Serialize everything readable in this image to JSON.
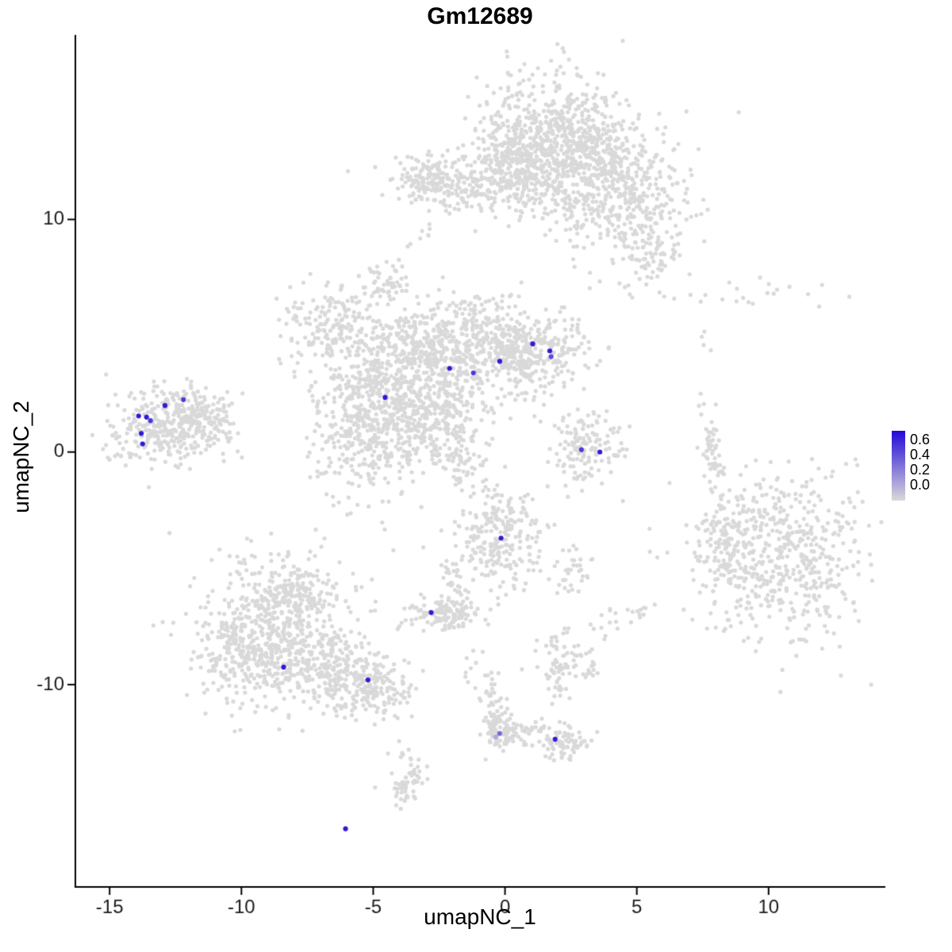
{
  "title": "Gm12689",
  "axes": {
    "x_label": "umapNC_1",
    "y_label": "umapNC_2"
  },
  "legend": {
    "labels": [
      "0.6",
      "0.4",
      "0.2",
      "0.0"
    ]
  },
  "chart_data": {
    "type": "scatter",
    "title": "Gm12689",
    "xlabel": "umapNC_1",
    "ylabel": "umapNC_2",
    "xlim": [
      -16.3,
      14.4
    ],
    "ylim": [
      -18.7,
      17.9
    ],
    "xticks": [
      -15,
      -10,
      -5,
      0,
      5,
      10
    ],
    "yticks": [
      10,
      0,
      -10
    ],
    "grid": false,
    "legend_position": "right",
    "legend_labels": [
      "0.6",
      "0.4",
      "0.2",
      "0.0"
    ],
    "color_low": "#D9D9D9",
    "color_high": "#2209D8",
    "color_max_value": 0.65,
    "background_clusters": [
      {
        "cx": 1.6,
        "cy": 13.7,
        "sx": 1.3,
        "sy": 1.5,
        "n": 420
      },
      {
        "cx": 2.1,
        "cy": 12.2,
        "sx": 1.5,
        "sy": 1.1,
        "n": 300
      },
      {
        "cx": 3.4,
        "cy": 13.4,
        "sx": 0.9,
        "sy": 0.8,
        "n": 150
      },
      {
        "cx": 4.2,
        "cy": 11.2,
        "sx": 1.1,
        "sy": 1.5,
        "n": 280,
        "rot": -30
      },
      {
        "cx": 5.3,
        "cy": 9.4,
        "sx": 0.8,
        "sy": 1.1,
        "n": 140
      },
      {
        "cx": 0.3,
        "cy": 12.6,
        "sx": 0.8,
        "sy": 0.8,
        "n": 150
      },
      {
        "cx": -1.7,
        "cy": 11.5,
        "sx": 1.3,
        "sy": 0.55,
        "n": 200
      },
      {
        "cx": -3.0,
        "cy": 11.8,
        "sx": 0.5,
        "sy": 0.45,
        "n": 70
      },
      {
        "cx": -3.1,
        "cy": 9.4,
        "sx": 0.4,
        "sy": 0.3,
        "n": 8
      },
      {
        "cx": 5.8,
        "cy": 8.3,
        "sx": 0.5,
        "sy": 0.5,
        "n": 12
      },
      {
        "cx": -4.4,
        "cy": 2.7,
        "sx": 1.4,
        "sy": 1.4,
        "n": 500
      },
      {
        "cx": -3.2,
        "cy": 4.2,
        "sx": 0.8,
        "sy": 0.8,
        "n": 150
      },
      {
        "cx": -1.2,
        "cy": 5.0,
        "sx": 1.4,
        "sy": 0.95,
        "n": 300
      },
      {
        "cx": 0.1,
        "cy": 4.1,
        "sx": 0.7,
        "sy": 0.6,
        "n": 120
      },
      {
        "cx": 1.2,
        "cy": 4.3,
        "sx": 1.1,
        "sy": 0.8,
        "n": 220
      },
      {
        "cx": -6.4,
        "cy": 5.5,
        "sx": 0.95,
        "sy": 0.9,
        "n": 180
      },
      {
        "cx": -5.3,
        "cy": 0.4,
        "sx": 1.0,
        "sy": 1.3,
        "n": 250
      },
      {
        "cx": -2.5,
        "cy": 1.8,
        "sx": 1.0,
        "sy": 0.9,
        "n": 200,
        "rot": 40
      },
      {
        "cx": -1.9,
        "cy": 0.0,
        "sx": 0.55,
        "sy": 0.9,
        "n": 100,
        "rot": 35
      },
      {
        "cx": -4.5,
        "cy": 7.3,
        "sx": 0.4,
        "sy": 0.45,
        "n": 45
      },
      {
        "cx": -12.8,
        "cy": 1.2,
        "sx": 1.1,
        "sy": 0.8,
        "n": 350,
        "rot": 15
      },
      {
        "cx": -11.4,
        "cy": 1.4,
        "sx": 0.6,
        "sy": 0.45,
        "n": 90
      },
      {
        "cx": 3.1,
        "cy": 0.1,
        "sx": 0.75,
        "sy": 0.8,
        "n": 140
      },
      {
        "cx": 7.85,
        "cy": 0.1,
        "sx": 0.18,
        "sy": 1.0,
        "n": 55,
        "rot": 10
      },
      {
        "cx": 10.4,
        "cy": -4.4,
        "sx": 1.7,
        "sy": 1.8,
        "n": 550
      },
      {
        "cx": 8.5,
        "cy": -4.2,
        "sx": 0.6,
        "sy": 1.1,
        "n": 90
      },
      {
        "cx": -0.2,
        "cy": -3.8,
        "sx": 0.85,
        "sy": 1.05,
        "n": 230
      },
      {
        "cx": -2.3,
        "cy": -6.9,
        "sx": 0.7,
        "sy": 0.4,
        "n": 110
      },
      {
        "cx": -1.6,
        "cy": -6.7,
        "sx": 0.3,
        "sy": 0.3,
        "n": 30
      },
      {
        "cx": -2.0,
        "cy": -5.6,
        "sx": 0.2,
        "sy": 0.6,
        "n": 22
      },
      {
        "cx": -8.7,
        "cy": -7.6,
        "sx": 1.4,
        "sy": 1.5,
        "n": 450
      },
      {
        "cx": -9.9,
        "cy": -8.6,
        "sx": 0.8,
        "sy": 1.0,
        "n": 180
      },
      {
        "cx": -8.0,
        "cy": -6.0,
        "sx": 0.8,
        "sy": 0.6,
        "n": 120
      },
      {
        "cx": -6.6,
        "cy": -9.4,
        "sx": 1.3,
        "sy": 0.9,
        "n": 280,
        "rot": -20
      },
      {
        "cx": -4.9,
        "cy": -10.1,
        "sx": 0.7,
        "sy": 0.5,
        "n": 120,
        "rot": -20
      },
      {
        "cx": 2.3,
        "cy": -9.1,
        "sx": 0.55,
        "sy": 0.6,
        "n": 90
      },
      {
        "cx": 2.6,
        "cy": -5.2,
        "sx": 0.35,
        "sy": 0.5,
        "n": 30
      },
      {
        "cx": 3.8,
        "cy": -7.4,
        "sx": 0.3,
        "sy": 0.4,
        "n": 12
      },
      {
        "cx": 5.0,
        "cy": -7.0,
        "sx": 0.25,
        "sy": 0.35,
        "n": 10
      },
      {
        "cx": -0.35,
        "cy": -11.3,
        "sx": 0.3,
        "sy": 0.8,
        "n": 50
      },
      {
        "cx": -0.2,
        "cy": -12.15,
        "sx": 0.35,
        "sy": 0.35,
        "n": 60
      },
      {
        "cx": 0.9,
        "cy": -11.9,
        "sx": 0.5,
        "sy": 0.35,
        "n": 30
      },
      {
        "cx": 2.1,
        "cy": -12.5,
        "sx": 0.55,
        "sy": 0.4,
        "n": 80
      },
      {
        "cx": -0.7,
        "cy": -9.7,
        "sx": 0.5,
        "sy": 0.6,
        "n": 12
      },
      {
        "cx": -0.4,
        "cy": -2.5,
        "sx": 0.4,
        "sy": 0.4,
        "n": 14
      },
      {
        "cx": -3.6,
        "cy": -13.9,
        "sx": 0.3,
        "sy": 0.5,
        "n": 40
      },
      {
        "cx": -3.8,
        "cy": -14.8,
        "sx": 0.25,
        "sy": 0.3,
        "n": 20
      },
      {
        "cx": 8.6,
        "cy": 6.8,
        "sx": 1.7,
        "sy": 0.3,
        "n": 22
      },
      {
        "cx": 7.5,
        "cy": 4.7,
        "sx": 0.3,
        "sy": 0.3,
        "n": 4
      }
    ],
    "highlighted_points": [
      {
        "x": -13.9,
        "y": 1.55,
        "v": 0.6
      },
      {
        "x": -13.6,
        "y": 1.5,
        "v": 0.6
      },
      {
        "x": -13.45,
        "y": 1.35,
        "v": 0.5
      },
      {
        "x": -13.8,
        "y": 0.8,
        "v": 0.6
      },
      {
        "x": -13.75,
        "y": 0.35,
        "v": 0.6
      },
      {
        "x": -12.9,
        "y": 2.0,
        "v": 0.6
      },
      {
        "x": -12.2,
        "y": 2.25,
        "v": 0.5
      },
      {
        "x": -4.55,
        "y": 2.35,
        "v": 0.6
      },
      {
        "x": -2.1,
        "y": 3.6,
        "v": 0.6
      },
      {
        "x": -1.2,
        "y": 3.4,
        "v": 0.5
      },
      {
        "x": -0.2,
        "y": 3.9,
        "v": 0.6
      },
      {
        "x": 1.05,
        "y": 4.65,
        "v": 0.6
      },
      {
        "x": 1.7,
        "y": 4.35,
        "v": 0.6
      },
      {
        "x": 1.75,
        "y": 4.1,
        "v": 0.45
      },
      {
        "x": 2.9,
        "y": 0.1,
        "v": 0.5
      },
      {
        "x": 3.6,
        "y": 0.0,
        "v": 0.6
      },
      {
        "x": -0.15,
        "y": -3.7,
        "v": 0.6
      },
      {
        "x": -2.8,
        "y": -6.9,
        "v": 0.6
      },
      {
        "x": -8.4,
        "y": -9.25,
        "v": 0.6
      },
      {
        "x": -5.2,
        "y": -9.8,
        "v": 0.6
      },
      {
        "x": -0.35,
        "y": -12.25,
        "v": 0.15
      },
      {
        "x": -0.2,
        "y": -12.1,
        "v": 0.35
      },
      {
        "x": 1.9,
        "y": -12.35,
        "v": 0.6
      },
      {
        "x": -6.05,
        "y": -16.2,
        "v": 0.6
      }
    ]
  }
}
